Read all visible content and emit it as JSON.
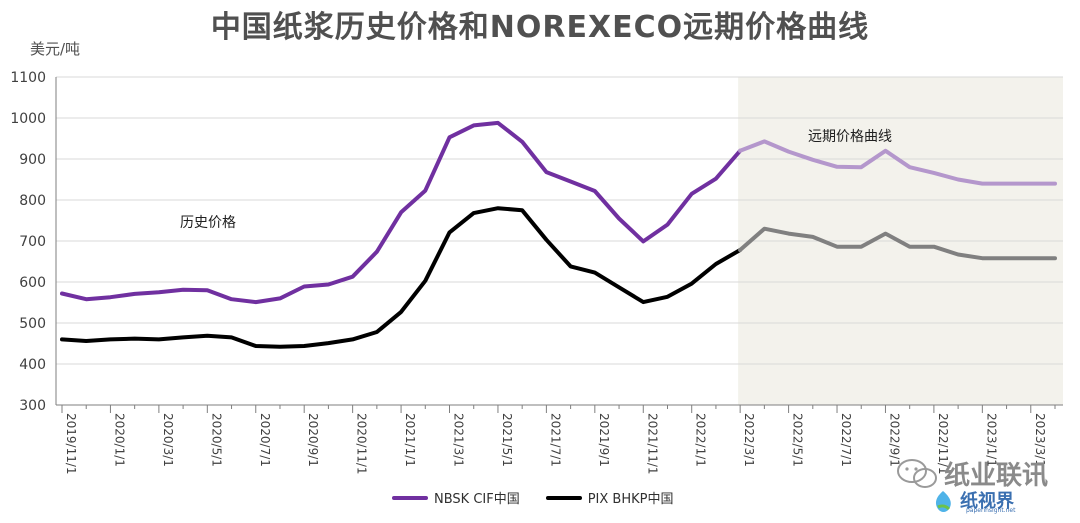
{
  "chart_data": {
    "type": "line",
    "title": "中国纸浆历史价格和NOREXECO远期价格曲线",
    "unit_label": "美元/吨",
    "ylim": [
      300,
      1100
    ],
    "yticks": [
      300,
      400,
      500,
      600,
      700,
      800,
      900,
      1000,
      1100
    ],
    "x_tick_labels": [
      "2019/11/1",
      "2020/1/1",
      "2020/3/1",
      "2020/5/1",
      "2020/7/1",
      "2020/9/1",
      "2020/11/1",
      "2021/1/1",
      "2021/3/1",
      "2021/5/1",
      "2021/7/1",
      "2021/9/1",
      "2021/11/1",
      "2022/1/1",
      "2022/3/1",
      "2022/5/1",
      "2022/7/1",
      "2022/9/1",
      "2022/11/1",
      "2023/1/1",
      "2023/3/1"
    ],
    "annotations": {
      "historical": "历史价格",
      "forward": "远期价格曲线"
    },
    "forward_start": "2022/3/1",
    "grid": "horizontal",
    "legend_position": "bottom",
    "series": [
      {
        "name": "NBSK CIF中国",
        "color": "#7030a0",
        "forward_color": "#b497cc",
        "values": [
          572,
          558,
          563,
          571,
          575,
          581,
          580,
          558,
          551,
          560,
          589,
          594,
          613,
          674,
          770,
          823,
          953,
          982,
          988,
          942,
          868,
          845,
          822,
          755,
          699,
          740,
          815,
          852,
          920,
          943,
          918,
          898,
          881,
          880,
          920,
          880,
          866,
          850,
          840,
          840,
          840,
          840
        ]
      },
      {
        "name": "PIX BHKP中国",
        "color": "#000000",
        "forward_color": "#808080",
        "values": [
          460,
          456,
          460,
          462,
          460,
          465,
          469,
          465,
          444,
          442,
          444,
          451,
          460,
          478,
          527,
          603,
          721,
          768,
          780,
          775,
          703,
          638,
          623,
          587,
          551,
          564,
          596,
          644,
          678,
          730,
          718,
          710,
          686,
          686,
          718,
          686,
          686,
          667,
          658,
          658,
          658,
          658
        ]
      }
    ]
  },
  "watermark": {
    "wechat_name": "纸业联讯",
    "brand": "纸视界",
    "site": "paperinsight.net"
  }
}
